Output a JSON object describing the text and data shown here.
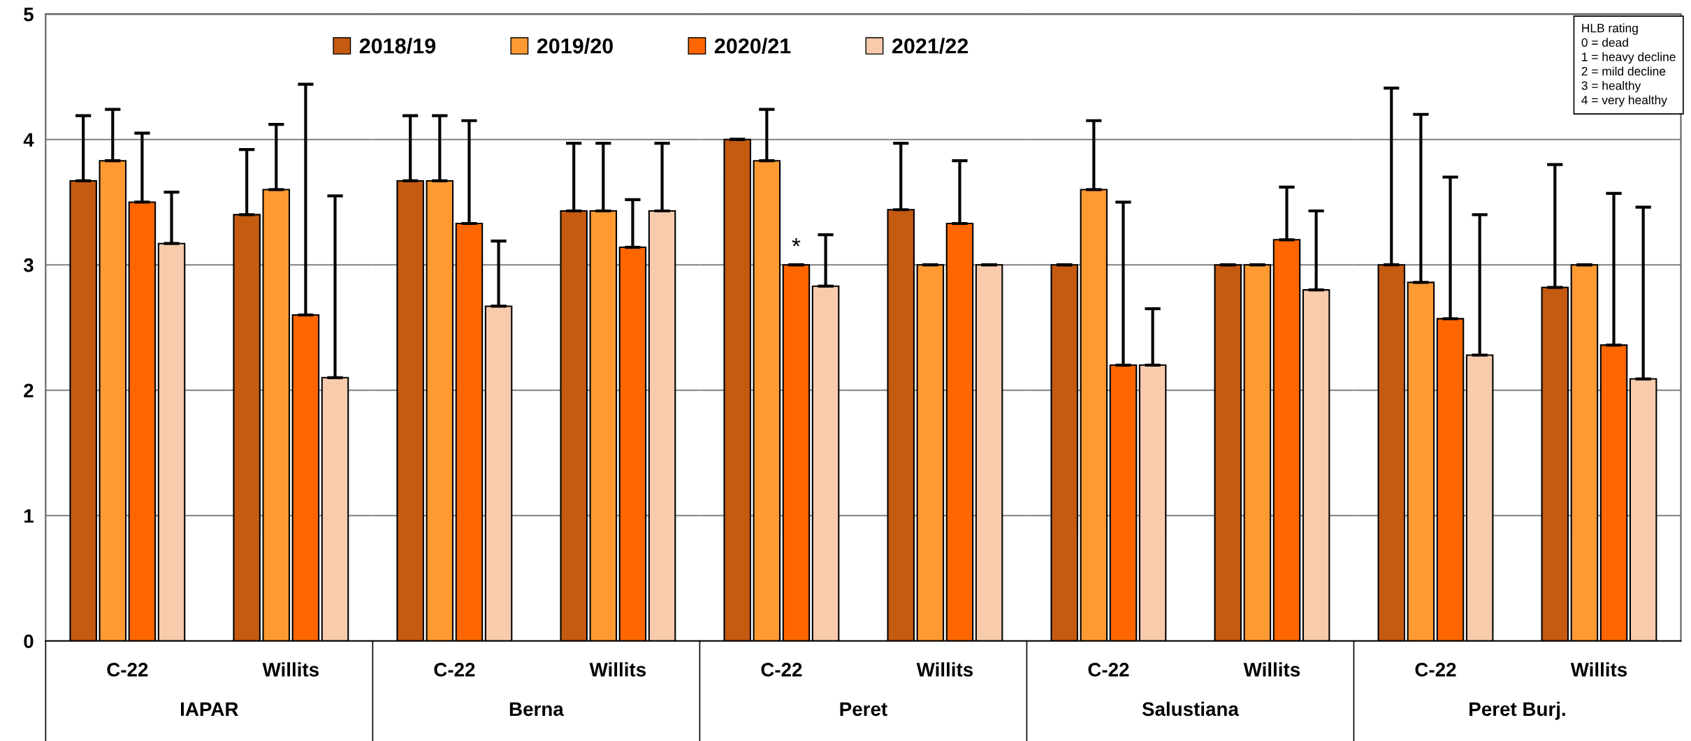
{
  "chart_data": [
    {
      "type": "bar",
      "xlabel": "IAPAR",
      "categories": [
        "C-22",
        "Willits"
      ],
      "ylim": [
        0,
        5
      ],
      "yticks": [
        0,
        1,
        2,
        3,
        4,
        5
      ],
      "grid": "y",
      "legend": "top",
      "series": [
        {
          "name": "2018/19",
          "color": "#c55a11",
          "values": [
            3.67,
            3.4
          ],
          "errors": [
            [
              3.67,
              4.19
            ],
            [
              3.4,
              3.92
            ]
          ]
        },
        {
          "name": "2019/20",
          "color": "#ff9a33",
          "values": [
            3.83,
            3.6
          ],
          "errors": [
            [
              3.83,
              4.24
            ],
            [
              3.6,
              4.12
            ]
          ]
        },
        {
          "name": "2020/21",
          "color": "#ff6600",
          "values": [
            3.5,
            2.6
          ],
          "errors": [
            [
              3.5,
              4.05
            ],
            [
              2.6,
              4.44
            ]
          ]
        },
        {
          "name": "2021/22",
          "color": "#f8cbad",
          "values": [
            3.17,
            2.1
          ],
          "errors": [
            [
              3.17,
              3.58
            ],
            [
              2.1,
              3.55
            ]
          ]
        }
      ]
    },
    {
      "type": "bar",
      "xlabel": "Berna",
      "categories": [
        "C-22",
        "Willits"
      ],
      "ylim": [
        0,
        5
      ],
      "yticks": [
        0,
        1,
        2,
        3,
        4,
        5
      ],
      "grid": "y",
      "tick_labels": "x",
      "series": [
        {
          "color": "#c55a11",
          "values": [
            3.67,
            3.43
          ],
          "errors": [
            [
              3.67,
              4.19
            ],
            [
              3.43,
              3.97
            ]
          ]
        },
        {
          "color": "#ff9a33",
          "values": [
            3.67,
            3.43
          ],
          "errors": [
            [
              3.67,
              4.19
            ],
            [
              3.43,
              3.97
            ]
          ]
        },
        {
          "color": "#ff6600",
          "values": [
            3.33,
            3.14
          ],
          "errors": [
            [
              3.33,
              4.15
            ],
            [
              3.14,
              3.52
            ]
          ]
        },
        {
          "color": "#f8cbad",
          "values": [
            2.67,
            3.43
          ],
          "errors": [
            [
              2.67,
              3.19
            ],
            [
              3.43,
              3.97
            ]
          ]
        }
      ]
    },
    {
      "type": "bar",
      "xlabel": "Peret",
      "categories": [
        "C-22",
        "Willits"
      ],
      "ylim": [
        0,
        5
      ],
      "yticks": [
        0,
        1,
        2,
        3,
        4,
        5
      ],
      "grid": "y",
      "tick_labels": "x",
      "annotations": [
        {
          "text": "*",
          "x": "C-22",
          "y": 3.0
        }
      ],
      "series": [
        {
          "color": "#c55a11",
          "values": [
            4.0,
            3.44
          ],
          "errors": [
            [
              4.0,
              4.0
            ],
            [
              3.44,
              3.97
            ]
          ]
        },
        {
          "color": "#ff9a33",
          "values": [
            3.83,
            3.0
          ],
          "errors": [
            [
              3.83,
              4.24
            ],
            [
              3.0,
              3.0
            ]
          ]
        },
        {
          "color": "#ff6600",
          "values": [
            3.0,
            3.33
          ],
          "errors": [
            [
              3.0,
              3.0
            ],
            [
              3.33,
              3.83
            ]
          ]
        },
        {
          "color": "#f8cbad",
          "values": [
            2.83,
            3.0
          ],
          "errors": [
            [
              2.83,
              3.24
            ],
            [
              3.0,
              3.0
            ]
          ]
        }
      ]
    },
    {
      "type": "bar",
      "xlabel": "Salustiana",
      "categories": [
        "C-22",
        "Willits"
      ],
      "ylim": [
        0,
        5
      ],
      "yticks": [
        0,
        1,
        2,
        3,
        4,
        5
      ],
      "grid": "y",
      "tick_labels": "x",
      "series": [
        {
          "color": "#c55a11",
          "values": [
            3.0,
            3.0
          ],
          "errors": [
            [
              3.0,
              3.0
            ],
            [
              3.0,
              3.0
            ]
          ]
        },
        {
          "color": "#ff9a33",
          "values": [
            3.6,
            3.0
          ],
          "errors": [
            [
              3.6,
              4.15
            ],
            [
              3.0,
              3.0
            ]
          ]
        },
        {
          "color": "#ff6600",
          "values": [
            2.2,
            3.2
          ],
          "errors": [
            [
              2.2,
              3.5
            ],
            [
              3.2,
              3.62
            ]
          ]
        },
        {
          "color": "#f8cbad",
          "values": [
            2.2,
            2.8
          ],
          "errors": [
            [
              2.2,
              2.65
            ],
            [
              2.8,
              3.43
            ]
          ]
        }
      ]
    },
    {
      "type": "bar",
      "xlabel": "Peret Burj.",
      "categories": [
        "C-22",
        "Willits"
      ],
      "ylim": [
        0,
        5
      ],
      "yticks": [
        0,
        1,
        2,
        3,
        4,
        5
      ],
      "grid": "y",
      "tick_labels": "x",
      "annotations": [
        "HLB rating\n0 = dead\n1 = heavy decline\n2 = mild decline\n3 = healthy\n4 = very healthy"
      ],
      "series": [
        {
          "color": "#c55a11",
          "values": [
            3.0,
            2.82
          ],
          "errors": [
            [
              3.0,
              4.41
            ],
            [
              2.82,
              3.8
            ]
          ]
        },
        {
          "color": "#ff9a33",
          "values": [
            2.86,
            3.0
          ],
          "errors": [
            [
              2.86,
              4.2
            ],
            [
              3.0,
              3.0
            ]
          ]
        },
        {
          "color": "#ff6600",
          "values": [
            2.57,
            2.36
          ],
          "errors": [
            [
              2.57,
              3.7
            ],
            [
              2.36,
              3.57
            ]
          ]
        },
        {
          "color": "#f8cbad",
          "values": [
            2.28,
            2.09
          ],
          "errors": [
            [
              2.28,
              3.4
            ],
            [
              2.09,
              3.46
            ]
          ]
        }
      ]
    }
  ]
}
